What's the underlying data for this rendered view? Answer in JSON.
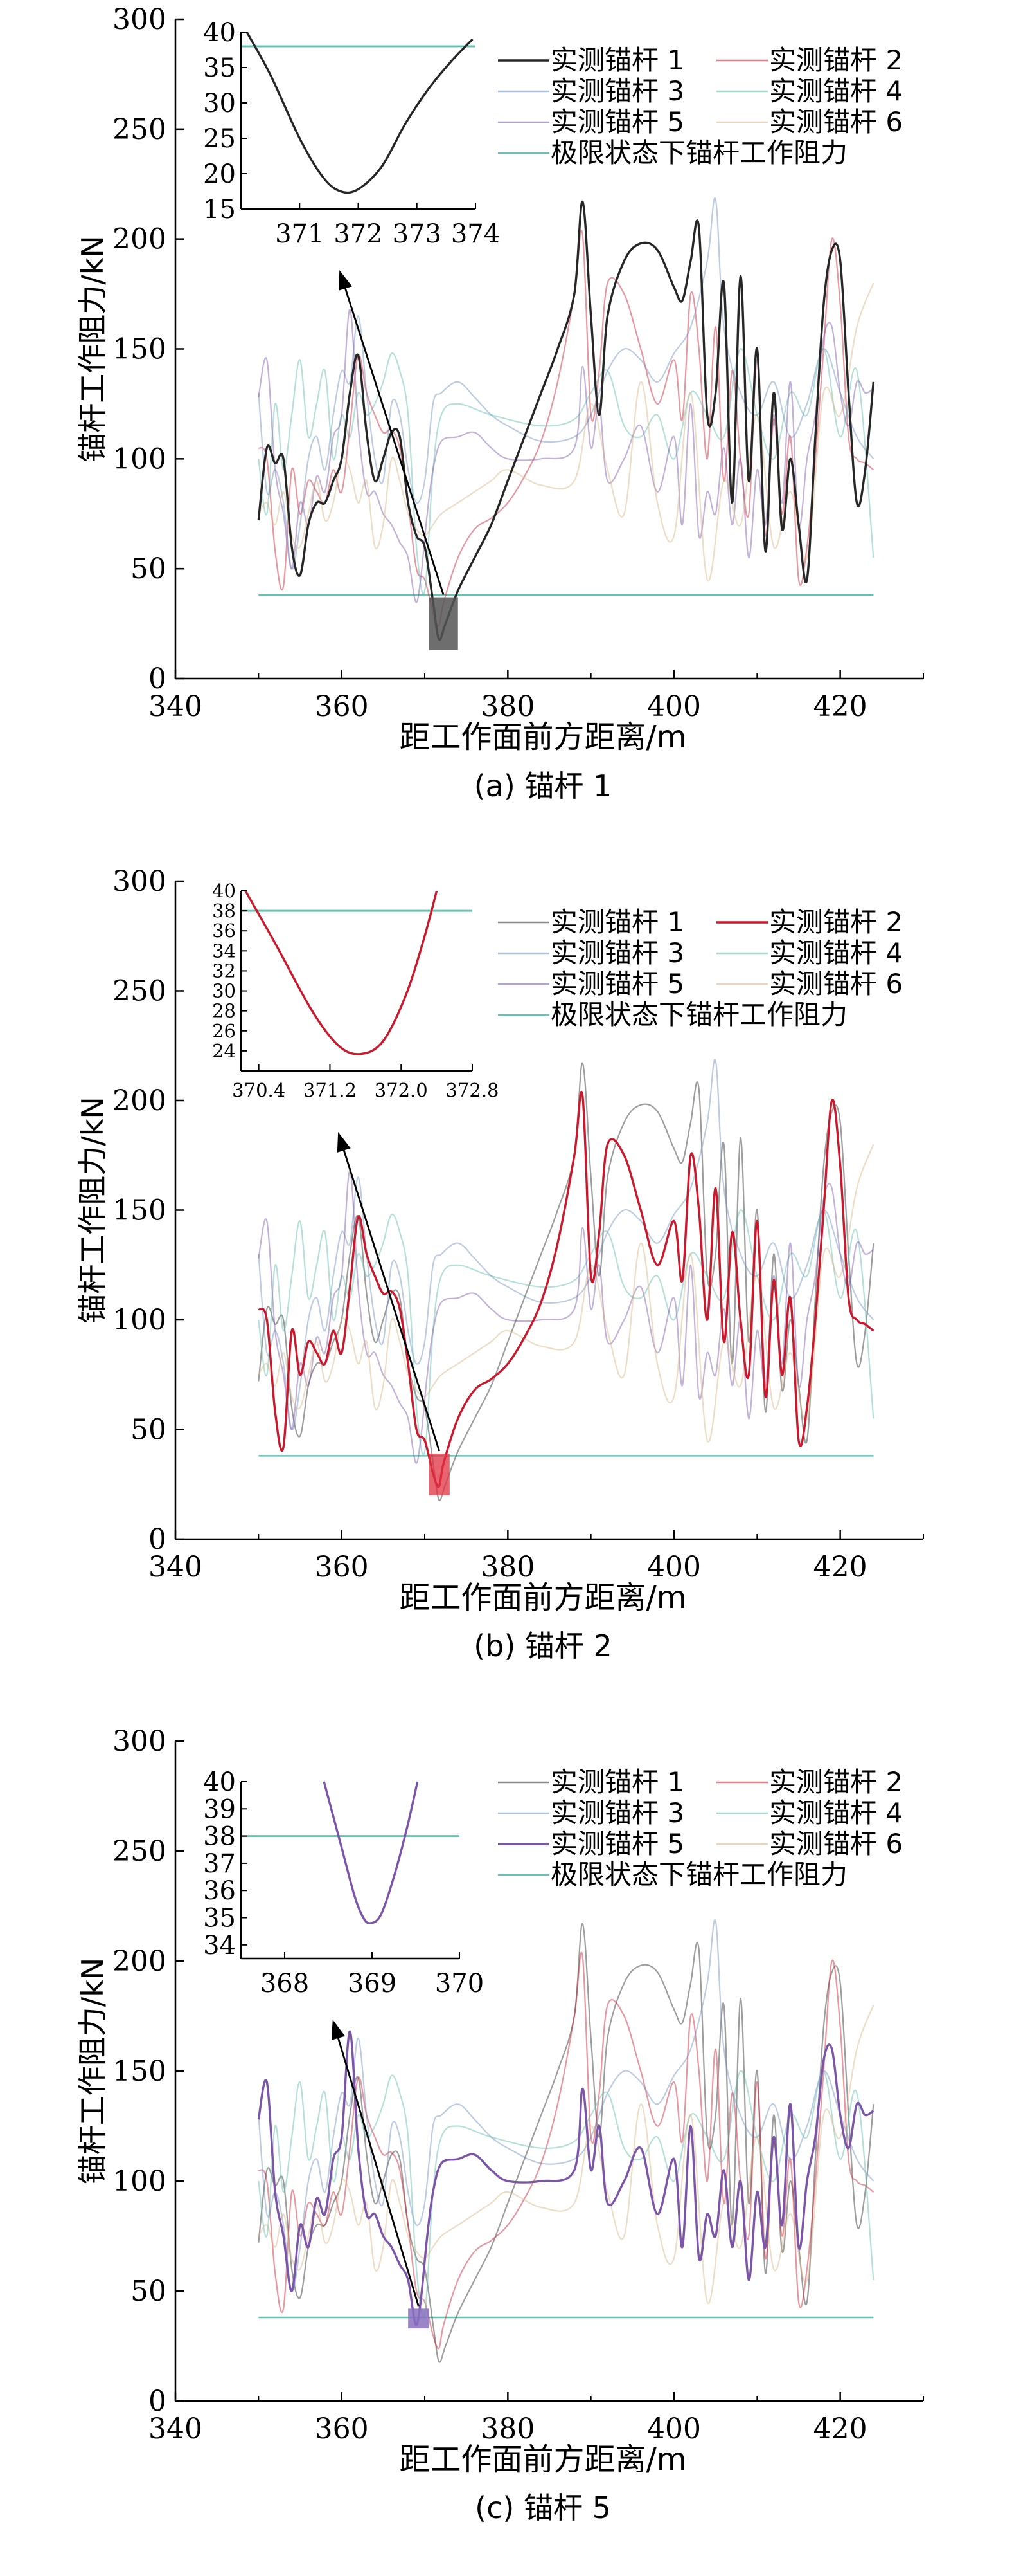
{
  "colors": {
    "anchor_1": "#262626",
    "anchor_2": "#c8192d",
    "anchor_3": "#6c8ebd",
    "anchor_4": "#5cb8a8",
    "anchor_5": "#7a55a8",
    "anchor_6": "#d8b482",
    "limit": "#66c2b4"
  },
  "chart_data": [
    {
      "type": "line",
      "caption": "(a) 锚杆 1",
      "xlabel": "距工作面前方距离/m",
      "ylabel": "锚杆工作阻力/kN",
      "xlim": [
        340,
        430
      ],
      "ylim": [
        0,
        300
      ],
      "xticks": [
        "340",
        "360",
        "380",
        "400",
        "420"
      ],
      "yticks": [
        "0",
        "50",
        "100",
        "150",
        "200",
        "250",
        "300"
      ],
      "highlight_series": "实测锚杆 1",
      "limit_value": 38,
      "legend": [
        "实测锚杆 1",
        "实测锚杆 2",
        "实测锚杆 3",
        "实测锚杆 4",
        "实测锚杆 5",
        "实测锚杆 6",
        "极限状态下锚杆工作阻力"
      ],
      "inset": {
        "xlim": [
          370,
          374
        ],
        "ylim": [
          15,
          40
        ],
        "xticks": [
          "371",
          "372",
          "373",
          "374"
        ],
        "yticks": [
          "15",
          "20",
          "25",
          "30",
          "35",
          "40"
        ],
        "curve_x": [
          370.1,
          370.5,
          371.0,
          371.4,
          371.7,
          372.0,
          372.4,
          372.8,
          373.2,
          373.6,
          373.95
        ],
        "curve_y": [
          40,
          34,
          25,
          19.5,
          17.5,
          17.8,
          21,
          27,
          32,
          36,
          39
        ]
      },
      "box": {
        "x": [
          370.5,
          374
        ],
        "y": [
          13,
          37
        ]
      }
    },
    {
      "type": "line",
      "caption": "(b) 锚杆 2",
      "xlabel": "距工作面前方距离/m",
      "ylabel": "锚杆工作阻力/kN",
      "xlim": [
        340,
        430
      ],
      "ylim": [
        0,
        300
      ],
      "xticks": [
        "340",
        "360",
        "380",
        "400",
        "420"
      ],
      "yticks": [
        "0",
        "50",
        "100",
        "150",
        "200",
        "250",
        "300"
      ],
      "highlight_series": "实测锚杆 2",
      "limit_value": 38,
      "legend": [
        "实测锚杆 1",
        "实测锚杆 2",
        "实测锚杆 3",
        "实测锚杆 4",
        "实测锚杆 5",
        "实测锚杆 6",
        "极限状态下锚杆工作阻力"
      ],
      "inset": {
        "xlim": [
          370.2,
          372.8
        ],
        "ylim": [
          22,
          40
        ],
        "xticks": [
          "370.4",
          "371.2",
          "372.0",
          "372.8"
        ],
        "yticks": [
          "24",
          "26",
          "28",
          "30",
          "32",
          "34",
          "36",
          "38",
          "40"
        ],
        "curve_x": [
          370.25,
          370.6,
          371.0,
          371.3,
          371.55,
          371.8,
          372.05,
          372.25,
          372.4
        ],
        "curve_y": [
          40,
          34.5,
          28,
          24.5,
          23.7,
          25,
          29.5,
          35,
          40
        ]
      },
      "box": {
        "x": [
          370.5,
          373
        ],
        "y": [
          20,
          39
        ]
      }
    },
    {
      "type": "line",
      "caption": "(c) 锚杆 5",
      "xlabel": "距工作面前方距离/m",
      "ylabel": "锚杆工作阻力/kN",
      "xlim": [
        340,
        430
      ],
      "ylim": [
        0,
        300
      ],
      "xticks": [
        "340",
        "360",
        "380",
        "400",
        "420"
      ],
      "yticks": [
        "0",
        "50",
        "100",
        "150",
        "200",
        "250",
        "300"
      ],
      "highlight_series": "实测锚杆 5",
      "limit_value": 38,
      "legend": [
        "实测锚杆 1",
        "实测锚杆 2",
        "实测锚杆 3",
        "实测锚杆 4",
        "实测锚杆 5",
        "实测锚杆 6",
        "极限状态下锚杆工作阻力"
      ],
      "inset": {
        "xlim": [
          367.5,
          370
        ],
        "ylim": [
          33.5,
          40
        ],
        "xticks": [
          "368",
          "369",
          "370"
        ],
        "yticks": [
          "34",
          "35",
          "36",
          "37",
          "38",
          "39",
          "40"
        ],
        "curve_x": [
          368.45,
          368.65,
          368.8,
          368.9,
          368.98,
          369.1,
          369.25,
          369.4,
          369.52
        ],
        "curve_y": [
          40,
          37.6,
          35.8,
          35,
          34.8,
          35.1,
          36.5,
          38.3,
          40
        ]
      },
      "box": {
        "x": [
          368,
          370.5
        ],
        "y": [
          33,
          42
        ]
      }
    }
  ],
  "series_data": {
    "anchor_1": {
      "x": [
        350,
        351,
        352,
        353,
        354,
        355,
        356,
        357,
        358,
        359,
        360,
        361,
        362,
        363,
        364,
        365,
        366,
        367,
        368,
        369,
        370,
        371,
        371.7,
        372.5,
        374,
        376,
        378,
        380,
        382,
        384,
        386,
        388,
        389,
        390,
        391,
        392,
        394,
        396,
        398,
        400,
        401,
        402,
        403,
        404,
        405,
        406,
        407,
        408,
        409,
        410,
        411,
        412,
        413,
        414,
        415,
        416,
        417,
        418,
        419,
        420,
        421,
        422,
        423,
        424
      ],
      "y": [
        72,
        105,
        98,
        100,
        60,
        47,
        70,
        80,
        80,
        90,
        100,
        130,
        147,
        112,
        90,
        100,
        112,
        110,
        80,
        65,
        60,
        35,
        18,
        25,
        40,
        55,
        70,
        90,
        110,
        130,
        150,
        175,
        217,
        165,
        120,
        165,
        190,
        198,
        195,
        178,
        172,
        190,
        205,
        120,
        130,
        180,
        80,
        183,
        90,
        150,
        58,
        130,
        68,
        100,
        70,
        45,
        110,
        170,
        195,
        190,
        130,
        80,
        95,
        135
      ]
    },
    "anchor_2": {
      "x": [
        350,
        351,
        352,
        353,
        354,
        355,
        356,
        357,
        358,
        359,
        360,
        361,
        362,
        363,
        364,
        365,
        366,
        367,
        368,
        369,
        370,
        371,
        371.7,
        372.3,
        374,
        376,
        378,
        380,
        382,
        384,
        386,
        388,
        389,
        390,
        391,
        392,
        394,
        396,
        398,
        400,
        401,
        402,
        403,
        404,
        405,
        406,
        407,
        408,
        409,
        410,
        411,
        412,
        413,
        414,
        415,
        416,
        417,
        418,
        419,
        420,
        421,
        422,
        423,
        424
      ],
      "y": [
        105,
        100,
        58,
        42,
        95,
        75,
        90,
        85,
        80,
        95,
        85,
        115,
        147,
        130,
        120,
        112,
        113,
        105,
        80,
        50,
        45,
        30,
        24,
        35,
        55,
        68,
        73,
        80,
        92,
        108,
        135,
        175,
        202,
        120,
        140,
        180,
        175,
        150,
        125,
        145,
        118,
        175,
        150,
        100,
        160,
        90,
        140,
        100,
        75,
        145,
        65,
        118,
        75,
        110,
        45,
        60,
        100,
        150,
        200,
        170,
        110,
        100,
        98,
        95
      ]
    },
    "anchor_3": {
      "x": [
        350,
        351,
        352,
        353,
        354,
        355,
        356,
        357,
        358,
        359,
        360,
        361,
        362,
        363,
        364,
        365,
        366,
        367,
        368,
        369,
        370,
        371,
        372,
        374,
        376,
        378,
        380,
        384,
        388,
        390,
        392,
        394,
        396,
        398,
        400,
        402,
        404,
        405,
        406,
        408,
        410,
        412,
        414,
        416,
        418,
        420,
        422,
        424
      ],
      "y": [
        130,
        85,
        95,
        80,
        50,
        70,
        100,
        110,
        95,
        120,
        140,
        135,
        165,
        130,
        100,
        90,
        125,
        120,
        95,
        80,
        90,
        125,
        130,
        135,
        128,
        120,
        115,
        108,
        110,
        120,
        140,
        150,
        145,
        135,
        148,
        160,
        190,
        218,
        160,
        130,
        120,
        135,
        110,
        125,
        150,
        130,
        110,
        100
      ]
    },
    "anchor_4": {
      "x": [
        350,
        351,
        352,
        353,
        354,
        355,
        356,
        357,
        358,
        359,
        360,
        361,
        362,
        363,
        364,
        365,
        366,
        367,
        368,
        369,
        370,
        371,
        372,
        374,
        378,
        384,
        388,
        390,
        392,
        394,
        396,
        398,
        400,
        402,
        404,
        406,
        408,
        410,
        412,
        414,
        416,
        418,
        420,
        422,
        424
      ],
      "y": [
        100,
        75,
        125,
        95,
        120,
        145,
        110,
        125,
        140,
        100,
        120,
        110,
        130,
        120,
        125,
        135,
        148,
        140,
        120,
        60,
        40,
        95,
        120,
        125,
        120,
        115,
        118,
        130,
        140,
        115,
        110,
        120,
        100,
        130,
        120,
        110,
        150,
        120,
        100,
        130,
        120,
        150,
        110,
        140,
        55
      ]
    },
    "anchor_5": {
      "x": [
        350,
        351,
        352,
        353,
        354,
        355,
        356,
        357,
        358,
        359,
        360,
        361,
        362,
        363,
        364,
        365,
        366,
        367,
        368,
        368.9,
        369.5,
        370.3,
        371,
        372,
        374,
        376,
        378,
        380,
        384,
        388,
        389,
        390,
        391,
        392,
        394,
        396,
        398,
        400,
        401,
        402,
        403,
        404,
        405,
        406,
        407,
        408,
        409,
        410,
        411,
        412,
        413,
        414,
        415,
        416,
        417,
        418,
        419,
        420,
        421,
        422,
        423,
        424
      ],
      "y": [
        128,
        145,
        95,
        75,
        50,
        80,
        70,
        92,
        85,
        110,
        120,
        168,
        115,
        85,
        85,
        75,
        70,
        62,
        55,
        35,
        45,
        75,
        95,
        108,
        110,
        112,
        105,
        100,
        100,
        105,
        142,
        105,
        125,
        90,
        100,
        115,
        85,
        110,
        70,
        125,
        65,
        85,
        75,
        105,
        70,
        100,
        55,
        95,
        70,
        120,
        80,
        135,
        70,
        100,
        120,
        155,
        160,
        130,
        115,
        135,
        130,
        132
      ]
    },
    "anchor_6": {
      "x": [
        350,
        351,
        352,
        353,
        354,
        355,
        356,
        357,
        358,
        359,
        360,
        361,
        362,
        363,
        364,
        365,
        366,
        367,
        368,
        369,
        370,
        371,
        372,
        374,
        376,
        378,
        380,
        384,
        388,
        390,
        392,
        394,
        396,
        398,
        400,
        402,
        404,
        406,
        408,
        410,
        412,
        414,
        416,
        418,
        420,
        422,
        424
      ],
      "y": [
        75,
        80,
        70,
        85,
        65,
        60,
        75,
        90,
        72,
        80,
        100,
        95,
        80,
        90,
        60,
        70,
        100,
        90,
        75,
        68,
        65,
        70,
        75,
        80,
        85,
        90,
        95,
        88,
        90,
        125,
        95,
        75,
        135,
        80,
        65,
        130,
        45,
        90,
        70,
        120,
        60,
        85,
        55,
        130,
        120,
        160,
        180
      ]
    }
  }
}
